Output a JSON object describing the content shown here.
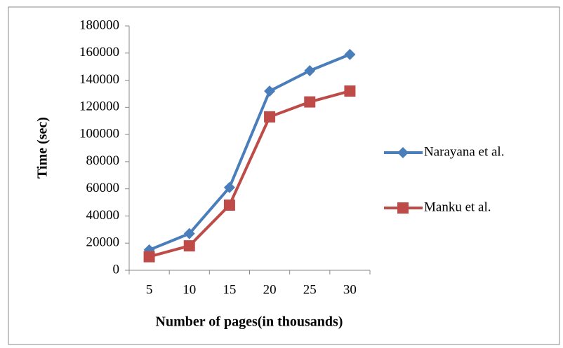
{
  "chart_data": {
    "type": "line",
    "xlabel": "Number of pages(in thousands)",
    "ylabel": "Time (sec)",
    "categories": [
      "5",
      "10",
      "15",
      "20",
      "25",
      "30"
    ],
    "series": [
      {
        "name": "Narayana et al.",
        "color": "#4a7ebb",
        "marker": "diamond",
        "values": [
          15000,
          27000,
          61000,
          132000,
          147000,
          159000
        ]
      },
      {
        "name": "Manku et al.",
        "color": "#be4b48",
        "marker": "square",
        "values": [
          10000,
          18000,
          48000,
          113000,
          124000,
          132000
        ]
      }
    ],
    "ylim": [
      0,
      180000
    ],
    "yticks": [
      0,
      20000,
      40000,
      60000,
      80000,
      100000,
      120000,
      140000,
      160000,
      180000
    ],
    "legend": "right"
  }
}
